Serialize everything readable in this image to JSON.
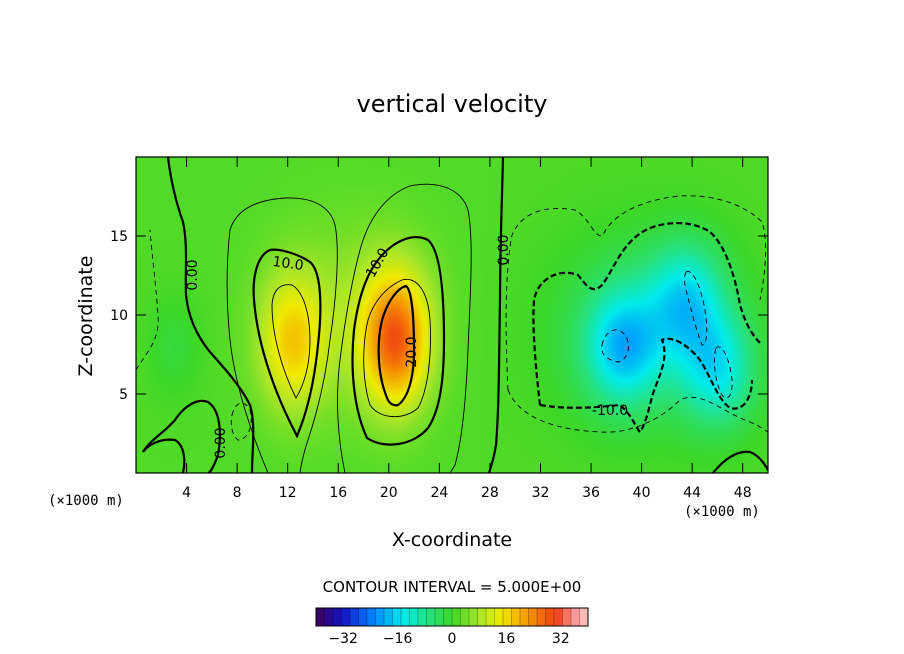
{
  "chart_data": {
    "type": "heatmap",
    "title": "vertical velocity",
    "xlabel": "X-coordinate",
    "ylabel": "Z-coordinate",
    "x_unit_left": "(×1000 m)",
    "x_unit_right": "(×1000 m)",
    "xlim": [
      0,
      50
    ],
    "ylim": [
      0,
      20
    ],
    "x_ticks": [
      4,
      8,
      12,
      16,
      20,
      24,
      28,
      32,
      36,
      40,
      44,
      48
    ],
    "x_tick_labels": [
      "4",
      "8",
      "12",
      "16",
      "20",
      "24",
      "28",
      "32",
      "36",
      "40",
      "44",
      "48"
    ],
    "y_ticks": [
      5,
      10,
      15
    ],
    "y_tick_labels": [
      "5",
      "10",
      "15"
    ],
    "contour_interval_text": "CONTOUR INTERVAL = 5.000E+00",
    "contour_labels": [
      {
        "text": "10.0",
        "x": 10.3,
        "y": 13.1
      },
      {
        "text": "10.0",
        "x": 18.7,
        "y": 13.1
      },
      {
        "text": "20.0",
        "x": 21.3,
        "y": 7.3
      },
      {
        "text": "0.00",
        "x": 4.3,
        "y": 12.4
      },
      {
        "text": "0.00",
        "x": 6.3,
        "y": 1.6
      },
      {
        "text": "0.00",
        "x": 28.5,
        "y": 14.2
      },
      {
        "text": "-10.0",
        "x": 37.8,
        "y": 4.1
      }
    ],
    "colorbar": {
      "range": [
        -40,
        40
      ],
      "ticks": [
        -32,
        -16,
        0,
        16,
        32
      ],
      "tick_labels": [
        "−32",
        "−16",
        "0",
        "16",
        "32"
      ]
    },
    "field_features": [
      {
        "kind": "updraft",
        "center": [
          20.5,
          8.5
        ],
        "peak": 24
      },
      {
        "kind": "updraft",
        "center": [
          12.3,
          8.3
        ],
        "peak": 14
      },
      {
        "kind": "downdraft",
        "center": [
          38.5,
          8.0
        ],
        "peak": -16
      },
      {
        "kind": "downdraft",
        "center": [
          43.5,
          11.0
        ],
        "peak": -14
      },
      {
        "kind": "downdraft",
        "center": [
          46.0,
          6.5
        ],
        "peak": -14
      }
    ]
  }
}
